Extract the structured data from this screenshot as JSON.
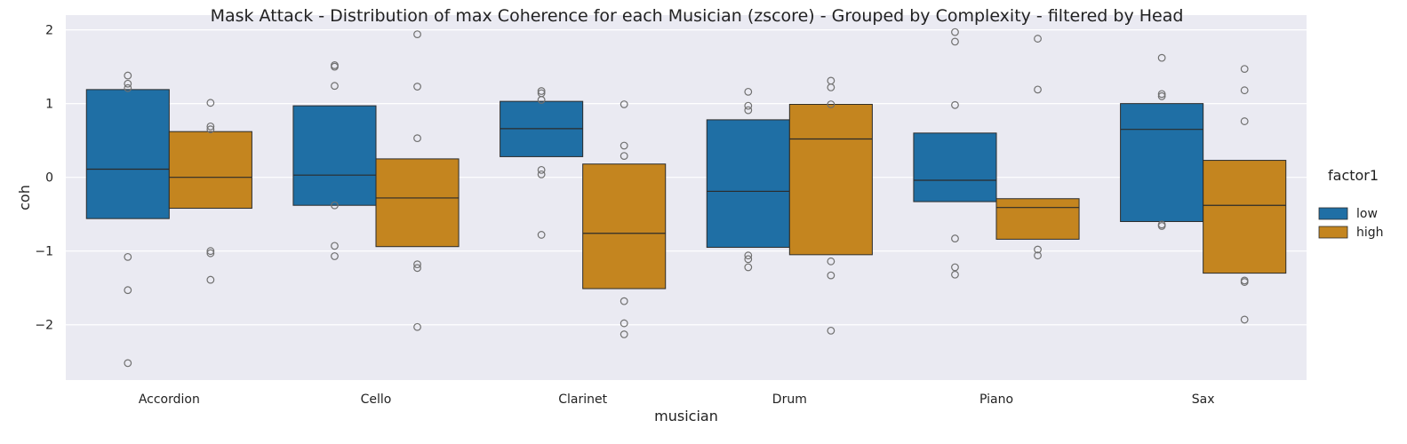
{
  "chart_data": {
    "type": "box",
    "title": "Mask Attack  - Distribution of max Coherence for each Musician (zscore) - Grouped by Complexity - filtered by Head",
    "xlabel": "musician",
    "ylabel": "coh",
    "ylim": [
      -2.75,
      2.2
    ],
    "yticks": [
      2,
      1,
      0,
      -1,
      -2
    ],
    "ytick_labels": [
      "2",
      "1",
      "0",
      "−1",
      "−2"
    ],
    "grid": true,
    "categories": [
      "Accordion",
      "Cello",
      "Clarinet",
      "Drum",
      "Piano",
      "Sax"
    ],
    "legend": {
      "title": "factor1",
      "placement": "right"
    },
    "series": [
      {
        "name": "low",
        "color": "#1f6fa5",
        "boxes": [
          {
            "q1": -0.56,
            "median": 0.11,
            "q3": 1.19,
            "outliers": [
              1.38,
              1.27,
              1.21,
              -1.08,
              -1.53,
              -2.52
            ]
          },
          {
            "q1": -0.38,
            "median": 0.03,
            "q3": 0.97,
            "outliers": [
              1.52,
              1.5,
              1.24,
              -0.38,
              -0.93,
              -1.07
            ]
          },
          {
            "q1": 0.28,
            "median": 0.66,
            "q3": 1.03,
            "outliers": [
              1.17,
              1.14,
              1.05,
              0.1,
              0.04,
              -0.78
            ]
          },
          {
            "q1": -0.95,
            "median": -0.19,
            "q3": 0.78,
            "outliers": [
              1.16,
              0.97,
              0.91,
              -1.06,
              -1.11,
              -1.22
            ]
          },
          {
            "q1": -0.33,
            "median": -0.04,
            "q3": 0.6,
            "outliers": [
              1.97,
              1.84,
              0.98,
              -0.83,
              -1.22,
              -1.32
            ]
          },
          {
            "q1": -0.6,
            "median": 0.65,
            "q3": 1.0,
            "outliers": [
              1.62,
              1.13,
              1.1,
              -0.64,
              -0.66
            ]
          }
        ]
      },
      {
        "name": "high",
        "color": "#c4851f",
        "boxes": [
          {
            "q1": -0.42,
            "median": 0.0,
            "q3": 0.62,
            "outliers": [
              1.01,
              0.69,
              0.65,
              -1.0,
              -1.03,
              -1.39
            ]
          },
          {
            "q1": -0.94,
            "median": -0.28,
            "q3": 0.25,
            "outliers": [
              1.94,
              1.23,
              0.53,
              -1.18,
              -1.23,
              -2.03
            ]
          },
          {
            "q1": -1.51,
            "median": -0.76,
            "q3": 0.18,
            "outliers": [
              0.99,
              0.43,
              0.29,
              -1.68,
              -1.98,
              -2.13
            ]
          },
          {
            "q1": -1.05,
            "median": 0.52,
            "q3": 0.99,
            "outliers": [
              1.31,
              1.22,
              0.99,
              -1.14,
              -1.33,
              -2.08
            ]
          },
          {
            "q1": -0.84,
            "median": -0.41,
            "q3": -0.29,
            "outliers": [
              1.88,
              1.19,
              -0.98,
              -1.06
            ]
          },
          {
            "q1": -1.3,
            "median": -0.38,
            "q3": 0.23,
            "outliers": [
              1.47,
              1.18,
              0.76,
              -1.4,
              -1.42,
              -1.93
            ]
          }
        ]
      }
    ]
  }
}
